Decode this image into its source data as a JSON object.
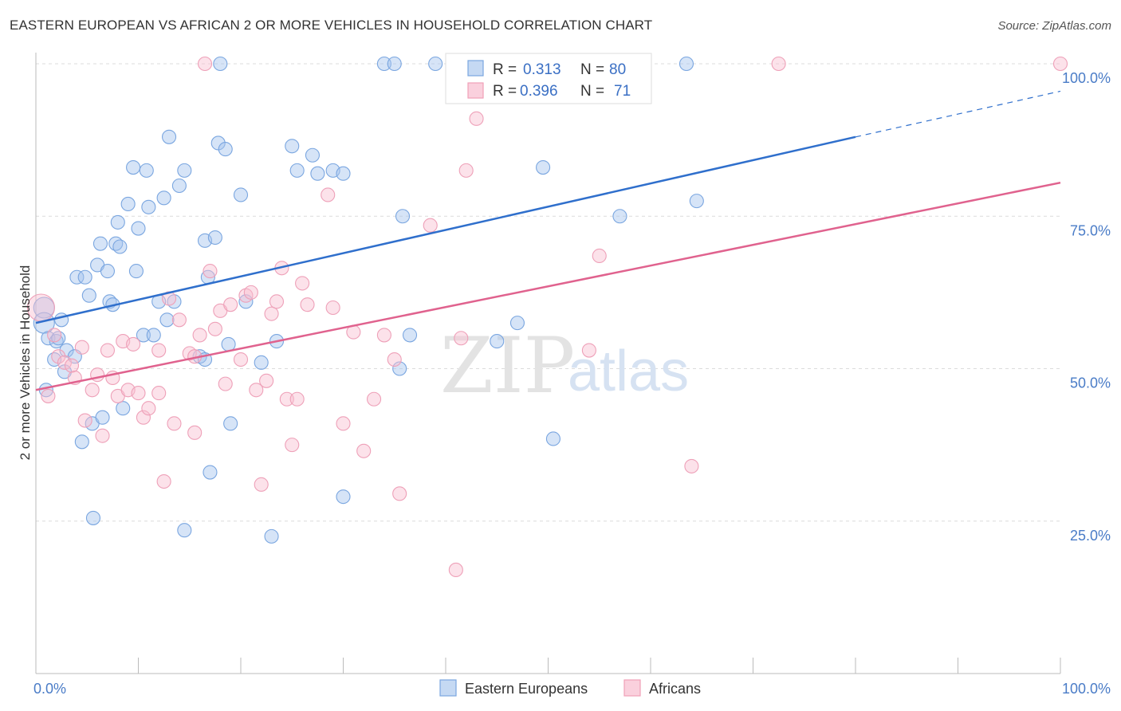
{
  "title": "EASTERN EUROPEAN VS AFRICAN 2 OR MORE VEHICLES IN HOUSEHOLD CORRELATION CHART",
  "source": "Source: ZipAtlas.com",
  "watermark": {
    "zip": "ZIP",
    "atlas": "atlas"
  },
  "chart_data": {
    "type": "scatter",
    "title": "EASTERN EUROPEAN VS AFRICAN 2 OR MORE VEHICLES IN HOUSEHOLD CORRELATION CHART",
    "xlabel": "",
    "ylabel": "2 or more Vehicles in Household",
    "xlim": [
      0,
      100
    ],
    "ylim": [
      0,
      100
    ],
    "x_tick_labels": [
      "0.0%",
      "100.0%"
    ],
    "y_ticks": [
      25,
      50,
      75,
      100
    ],
    "y_tick_labels": [
      "25.0%",
      "50.0%",
      "75.0%",
      "100.0%"
    ],
    "grid": true,
    "legend_placement": "top-center",
    "colors": {
      "eastern": "#7aa6e0",
      "africans": "#f0a0b8",
      "eastern_line": "#2f6fcc",
      "africans_line": "#e0628e"
    },
    "legend": [
      {
        "r_label": "R =",
        "r_value": "0.313",
        "n_label": "N =",
        "n_value": "80"
      },
      {
        "r_label": "R =",
        "r_value": "0.396",
        "n_label": "N =",
        "n_value": "71"
      }
    ],
    "series": [
      {
        "name": "Eastern Europeans",
        "trend": {
          "x": [
            0,
            80
          ],
          "y": [
            57.5,
            88
          ],
          "dashed_to": [
            100,
            95.5
          ]
        },
        "points": [
          [
            0.8,
            60
          ],
          [
            0.8,
            57.5
          ],
          [
            1.0,
            46.5
          ],
          [
            1.2,
            55
          ],
          [
            1.8,
            51.5
          ],
          [
            2.0,
            54.5
          ],
          [
            2.2,
            55
          ],
          [
            2.5,
            58
          ],
          [
            3,
            53
          ],
          [
            2.8,
            49.5
          ],
          [
            3.8,
            52
          ],
          [
            4,
            65
          ],
          [
            4.5,
            38
          ],
          [
            4.8,
            65
          ],
          [
            5.2,
            62
          ],
          [
            5.5,
            41
          ],
          [
            5.6,
            25.5
          ],
          [
            6,
            67
          ],
          [
            6.3,
            70.5
          ],
          [
            6.5,
            42
          ],
          [
            7,
            66
          ],
          [
            7.2,
            61
          ],
          [
            7.5,
            60.5
          ],
          [
            7.8,
            70.5
          ],
          [
            8,
            74
          ],
          [
            8.2,
            70
          ],
          [
            8.5,
            43.5
          ],
          [
            9,
            77
          ],
          [
            9.5,
            83
          ],
          [
            9.8,
            66
          ],
          [
            10,
            73
          ],
          [
            10.5,
            55.5
          ],
          [
            10.8,
            82.5
          ],
          [
            11,
            76.5
          ],
          [
            11.5,
            55.5
          ],
          [
            12,
            61
          ],
          [
            12.5,
            78
          ],
          [
            12.8,
            58
          ],
          [
            13,
            88
          ],
          [
            13.5,
            61
          ],
          [
            14,
            80
          ],
          [
            14.5,
            82.5
          ],
          [
            14.5,
            23.5
          ],
          [
            16,
            52
          ],
          [
            16.5,
            51.5
          ],
          [
            16.5,
            71
          ],
          [
            16.8,
            65
          ],
          [
            17,
            33
          ],
          [
            17.5,
            71.5
          ],
          [
            17.8,
            87
          ],
          [
            18,
            100
          ],
          [
            18.5,
            86
          ],
          [
            18.8,
            54
          ],
          [
            19.0,
            41
          ],
          [
            20,
            78.5
          ],
          [
            20.5,
            61
          ],
          [
            22,
            51
          ],
          [
            23,
            22.5
          ],
          [
            23.5,
            54.5
          ],
          [
            25,
            86.5
          ],
          [
            25.5,
            82.5
          ],
          [
            27,
            85
          ],
          [
            27.5,
            82
          ],
          [
            29,
            82.5
          ],
          [
            30,
            82
          ],
          [
            30,
            29
          ],
          [
            34,
            100
          ],
          [
            35,
            100
          ],
          [
            35.5,
            50
          ],
          [
            35.8,
            75
          ],
          [
            36.5,
            55.5
          ],
          [
            39,
            100
          ],
          [
            45,
            54.5
          ],
          [
            47,
            57.5
          ],
          [
            49.5,
            83
          ],
          [
            50.5,
            38.5
          ],
          [
            57,
            75
          ],
          [
            64.5,
            77.5
          ],
          [
            63.5,
            100
          ]
        ]
      },
      {
        "name": "Africans",
        "trend": {
          "x": [
            0,
            100
          ],
          "y": [
            46.5,
            80.5
          ]
        },
        "points": [
          [
            0.5,
            60
          ],
          [
            1.2,
            45.5
          ],
          [
            1.8,
            55.5
          ],
          [
            2.2,
            52
          ],
          [
            2.8,
            51
          ],
          [
            3.5,
            50.5
          ],
          [
            3.8,
            48.5
          ],
          [
            4.5,
            53.5
          ],
          [
            4.8,
            41.5
          ],
          [
            5.5,
            46.5
          ],
          [
            6,
            49
          ],
          [
            6.5,
            39
          ],
          [
            7,
            53
          ],
          [
            7.5,
            48.5
          ],
          [
            8,
            45.5
          ],
          [
            8.5,
            54.5
          ],
          [
            9,
            46.5
          ],
          [
            9.5,
            54
          ],
          [
            10,
            46
          ],
          [
            10.5,
            42
          ],
          [
            11,
            43.5
          ],
          [
            12,
            53
          ],
          [
            12,
            46
          ],
          [
            12.5,
            31.5
          ],
          [
            13,
            61.5
          ],
          [
            13.5,
            41
          ],
          [
            14,
            58
          ],
          [
            15,
            52.5
          ],
          [
            15.5,
            52
          ],
          [
            15.5,
            39.5
          ],
          [
            16,
            55.5
          ],
          [
            16.5,
            100
          ],
          [
            17,
            66
          ],
          [
            17.5,
            56.5
          ],
          [
            18,
            59.5
          ],
          [
            18.5,
            47.5
          ],
          [
            19,
            60.5
          ],
          [
            20,
            51.5
          ],
          [
            20.5,
            62
          ],
          [
            21,
            62.5
          ],
          [
            21.5,
            46.5
          ],
          [
            22,
            31
          ],
          [
            22.5,
            48
          ],
          [
            23,
            59
          ],
          [
            23.5,
            61
          ],
          [
            24,
            66.5
          ],
          [
            24.5,
            45
          ],
          [
            25,
            37.5
          ],
          [
            25.5,
            45
          ],
          [
            26,
            64
          ],
          [
            26.5,
            60.5
          ],
          [
            28.5,
            78.5
          ],
          [
            29,
            60
          ],
          [
            30,
            41
          ],
          [
            31,
            56
          ],
          [
            32,
            36.5
          ],
          [
            33,
            45
          ],
          [
            34,
            55.5
          ],
          [
            35,
            51.5
          ],
          [
            35.5,
            29.5
          ],
          [
            38.5,
            73.5
          ],
          [
            41,
            17
          ],
          [
            41.5,
            55
          ],
          [
            42,
            82.5
          ],
          [
            43,
            91
          ],
          [
            54,
            53
          ],
          [
            55,
            68.5
          ],
          [
            64,
            34
          ],
          [
            72.5,
            100
          ],
          [
            100,
            100
          ]
        ]
      }
    ]
  }
}
